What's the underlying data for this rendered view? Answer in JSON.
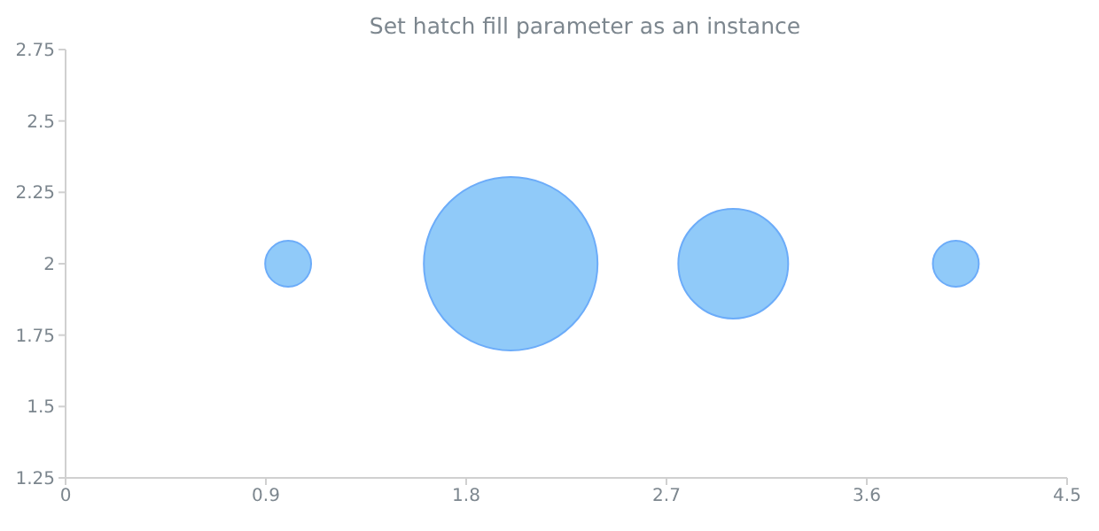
{
  "chart_data": {
    "type": "bubble",
    "title": "Set hatch fill parameter as an instance",
    "x": [
      1,
      2,
      3,
      4
    ],
    "values": [
      2,
      2,
      2,
      2
    ],
    "sizes": [
      0.07,
      1,
      0.4,
      0.07
    ],
    "color": "#90caf9",
    "xlim": [
      0,
      4.5
    ],
    "xticks": [
      0,
      0.9,
      1.8,
      2.7,
      3.6,
      4.5
    ],
    "ylim": [
      1.25,
      2.75
    ],
    "yticks": [
      1.25,
      1.5,
      1.75,
      2,
      2.25,
      2.5,
      2.75
    ],
    "grid": false,
    "legend": false
  }
}
